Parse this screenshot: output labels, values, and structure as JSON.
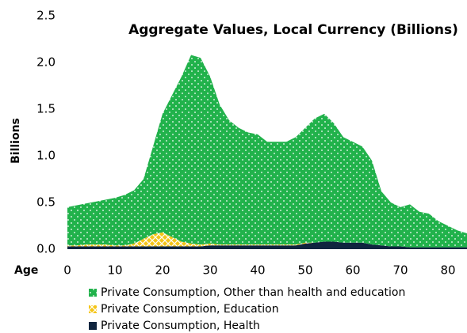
{
  "chart_data": {
    "type": "stacked_area",
    "title": "Aggregate Values, Local Currency (Billions)",
    "y_label": "Billions",
    "x_label": "Age",
    "x": [
      0,
      2,
      4,
      6,
      8,
      10,
      12,
      14,
      16,
      18,
      20,
      22,
      24,
      26,
      28,
      30,
      32,
      34,
      36,
      38,
      40,
      42,
      44,
      46,
      48,
      50,
      52,
      54,
      56,
      58,
      60,
      62,
      64,
      66,
      68,
      70,
      72,
      74,
      76,
      78,
      80,
      82,
      84
    ],
    "xlim": [
      0,
      84
    ],
    "xticks": [
      0,
      10,
      20,
      30,
      40,
      50,
      60,
      70,
      80
    ],
    "ylim": [
      0,
      2.5
    ],
    "yticks": [
      {
        "value": 0,
        "label": "0.0"
      },
      0.5,
      {
        "value": 1,
        "label": "1.0"
      },
      1.5,
      {
        "value": 2,
        "label": "2.0"
      },
      2.5
    ],
    "grid": false,
    "series": [
      {
        "name": "Private Consumption, Other than health and education",
        "color": "#21b24b",
        "values": [
          0.41,
          0.43,
          0.44,
          0.46,
          0.48,
          0.51,
          0.54,
          0.57,
          0.64,
          0.94,
          1.27,
          1.52,
          1.77,
          2.02,
          2.0,
          1.79,
          1.5,
          1.33,
          1.25,
          1.2,
          1.18,
          1.1,
          1.1,
          1.1,
          1.15,
          1.23,
          1.33,
          1.37,
          1.27,
          1.13,
          1.08,
          1.03,
          0.9,
          0.58,
          0.47,
          0.42,
          0.46,
          0.38,
          0.36,
          0.28,
          0.23,
          0.18,
          0.15
        ]
      },
      {
        "name": "Private Consumption, Education",
        "color": "#f5c518",
        "values": [
          0.01,
          0.01,
          0.02,
          0.02,
          0.02,
          0.01,
          0.01,
          0.03,
          0.08,
          0.13,
          0.15,
          0.1,
          0.05,
          0.03,
          0.02,
          0.02,
          0.01,
          0.01,
          0.01,
          0.01,
          0.01,
          0.01,
          0.01,
          0.01,
          0.01,
          0.01,
          0,
          0,
          0,
          0,
          0,
          0,
          0,
          0,
          0,
          0,
          0,
          0,
          0,
          0,
          0,
          0,
          0
        ]
      },
      {
        "name": "Private Consumption, Health",
        "color": "#10253f",
        "values": [
          0.03,
          0.03,
          0.03,
          0.03,
          0.03,
          0.03,
          0.03,
          0.03,
          0.03,
          0.03,
          0.03,
          0.03,
          0.03,
          0.03,
          0.03,
          0.04,
          0.04,
          0.04,
          0.04,
          0.04,
          0.04,
          0.04,
          0.04,
          0.04,
          0.04,
          0.06,
          0.07,
          0.08,
          0.08,
          0.07,
          0.07,
          0.07,
          0.05,
          0.04,
          0.03,
          0.03,
          0.02,
          0.02,
          0.02,
          0.02,
          0.02,
          0.02,
          0.02
        ]
      }
    ]
  }
}
